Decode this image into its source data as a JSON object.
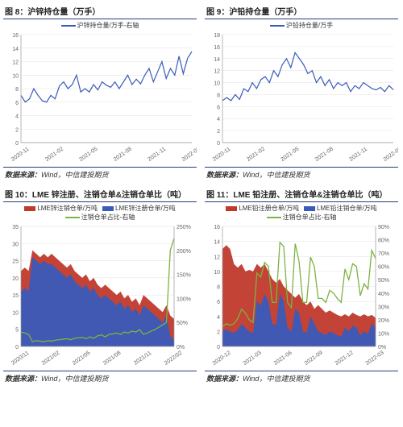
{
  "source_prefix": "数据来源：",
  "source_text": "Wind，中信建投期货",
  "chart8": {
    "type": "line",
    "title": "图 8：沪锌持仓量（万手）",
    "legend": "沪锌持仓量/万手-右轴",
    "line_color": "#3a5bba",
    "ylim": [
      0,
      16
    ],
    "ytick_step": 2,
    "x_labels": [
      "2020-11",
      "2021-02",
      "2021-05",
      "2021-08",
      "2021-11",
      "2022-02"
    ],
    "values": [
      7,
      6,
      6.5,
      8,
      7,
      6.2,
      6,
      7,
      6.5,
      8.4,
      9,
      8,
      8.6,
      10,
      7.5,
      8,
      7.5,
      8.6,
      7.8,
      9,
      8.5,
      8.2,
      9,
      8,
      9,
      10,
      8.6,
      9.4,
      8.7,
      10,
      11,
      9,
      10.5,
      12,
      9.5,
      11,
      10,
      12.8,
      10.2,
      12.5,
      13.5
    ]
  },
  "chart9": {
    "type": "line",
    "title": "图 9：沪铅持仓量（万手）",
    "legend": "沪铅持仓量/万手",
    "line_color": "#3a5bba",
    "ylim": [
      0,
      18
    ],
    "ytick_step": 2,
    "x_labels": [
      "2020-11",
      "2021-02",
      "2021-05",
      "2021-08",
      "2021-11",
      "2022-02"
    ],
    "values": [
      7,
      7.5,
      7,
      8,
      7.2,
      9,
      8.5,
      10,
      9,
      10.5,
      11,
      10,
      12,
      11,
      13,
      14,
      12.5,
      15,
      14,
      13,
      11.5,
      12,
      10,
      11,
      9.5,
      10.5,
      9,
      10,
      9.5,
      10,
      8.5,
      9.5,
      9,
      10,
      9.5,
      9,
      8.8,
      9.2,
      8.5,
      9.5,
      8.8
    ]
  },
  "chart10": {
    "type": "stacked-area-line",
    "title": "图 10：LME 锌注册、注销仓单&注销仓单比（吨）",
    "legend_items": [
      {
        "label": "LME锌注销仓单/万吨",
        "color": "#c0392b",
        "type": "area"
      },
      {
        "label": "LME锌注册仓单/万吨",
        "color": "#3a5bba",
        "type": "area"
      },
      {
        "label": "注销仓单占比-右轴",
        "color": "#7cb342",
        "type": "line"
      }
    ],
    "y_left": {
      "lim": [
        0,
        35
      ],
      "step": 5
    },
    "y_right": {
      "lim": [
        0,
        250
      ],
      "step": 50,
      "suffix": "%"
    },
    "x_labels": [
      "2020/11",
      "2021/02",
      "2021/05",
      "2021/08",
      "2021/11",
      "2022/02"
    ],
    "series_red": [
      22,
      23,
      22,
      28,
      27,
      26,
      27,
      26,
      27,
      26,
      25,
      24,
      23,
      24,
      22,
      21,
      20,
      21,
      19,
      20,
      18,
      17,
      18,
      17,
      16,
      15,
      16,
      14,
      15,
      13,
      14,
      12,
      15,
      14,
      13,
      12,
      11,
      10,
      12,
      9,
      8
    ],
    "series_blue": [
      16,
      17,
      16,
      26,
      25,
      24,
      25,
      24,
      24,
      23,
      22,
      21,
      20,
      21,
      19,
      18,
      17,
      18,
      16,
      17,
      15,
      14,
      15,
      14,
      13,
      12,
      13,
      11,
      12,
      10,
      11,
      9,
      12,
      11,
      10,
      9,
      8,
      7,
      9,
      3,
      2
    ],
    "series_green": [
      30,
      28,
      25,
      10,
      12,
      11,
      10,
      12,
      11,
      13,
      14,
      15,
      16,
      14,
      17,
      18,
      19,
      16,
      20,
      17,
      22,
      24,
      20,
      25,
      26,
      28,
      25,
      30,
      28,
      32,
      30,
      35,
      25,
      28,
      32,
      35,
      40,
      45,
      50,
      200,
      225
    ]
  },
  "chart11": {
    "type": "stacked-area-line",
    "title": "图 11：LME 铅注册、注销仓单&注销仓单比（吨）",
    "legend_items": [
      {
        "label": "LME铅注册仓单/万吨",
        "color": "#c0392b",
        "type": "area"
      },
      {
        "label": "LME铅注销仓单/万吨",
        "color": "#3a5bba",
        "type": "area"
      },
      {
        "label": "注销仓单占比-右轴",
        "color": "#7cb342",
        "type": "line"
      }
    ],
    "y_left": {
      "lim": [
        0,
        16
      ],
      "step": 2
    },
    "y_right": {
      "lim": [
        0,
        90
      ],
      "step": 10,
      "suffix": "%"
    },
    "x_labels": [
      "2020-12",
      "2021-03",
      "2021-06",
      "2021-09",
      "2021-12",
      "2022-03"
    ],
    "series_red": [
      13,
      13.5,
      13,
      11,
      10.5,
      11,
      10,
      10.2,
      10,
      11,
      10.5,
      11,
      10,
      9,
      8.5,
      9,
      8,
      7.5,
      7,
      6.5,
      7,
      6,
      5.5,
      6,
      5,
      5.5,
      5,
      4.5,
      4.8,
      4.5,
      4.2,
      4,
      4.3,
      4,
      4.5,
      4.2,
      4,
      4.3,
      4,
      4.2,
      3.8
    ],
    "series_blue": [
      2,
      2.3,
      2,
      1.8,
      2.2,
      3,
      2.5,
      2,
      1.8,
      6,
      5.5,
      7,
      6,
      3,
      2.8,
      7,
      6,
      2.5,
      2,
      5,
      4.5,
      2,
      1.8,
      4,
      3,
      2,
      1.8,
      1.5,
      2,
      1.8,
      1.5,
      1.3,
      2.5,
      2,
      2.8,
      2.5,
      1.5,
      2,
      1.7,
      3,
      2.5
    ],
    "series_green": [
      15,
      17,
      16,
      17,
      21,
      28,
      25,
      20,
      18,
      55,
      52,
      63,
      60,
      33,
      33,
      78,
      75,
      33,
      29,
      77,
      64,
      33,
      33,
      67,
      60,
      36,
      36,
      33,
      42,
      40,
      36,
      33,
      58,
      50,
      62,
      60,
      38,
      47,
      43,
      72,
      66
    ],
    "green_color": "#7cb342"
  },
  "colors": {
    "frame": "#2a3a7a",
    "grid": "#e0e0e0",
    "axis_text": "#666666"
  }
}
